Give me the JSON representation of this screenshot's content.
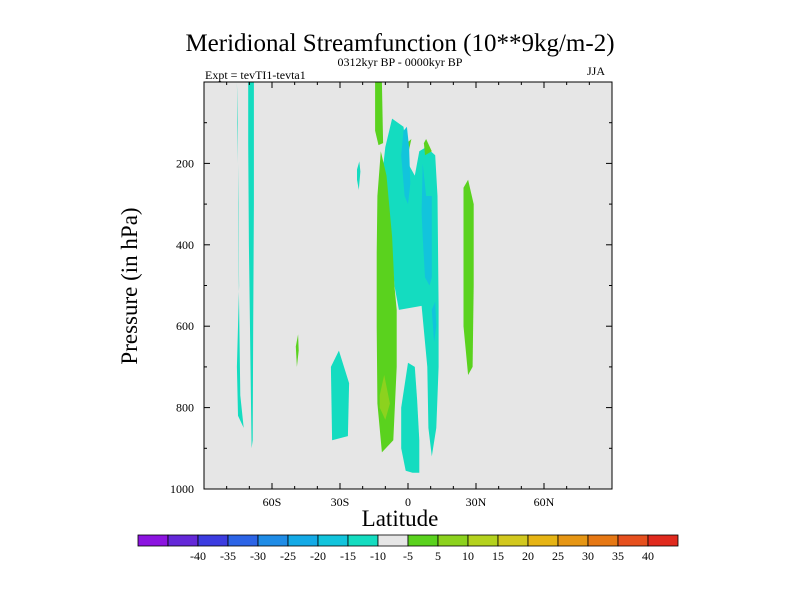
{
  "chart_data": {
    "type": "heatmap",
    "title": "Meridional Streamfunction (10**9kg/m-2)",
    "subtitle": "0312kyr BP - 0000kyr BP",
    "left_label": "Expt = tevTI1-tevta1",
    "right_label": "JJA",
    "xlabel": "Latitude",
    "ylabel": "Pressure (in hPa)",
    "xlim": [
      -90,
      90
    ],
    "ylim": [
      1000,
      0
    ],
    "x_ticks": [
      {
        "value": -60,
        "label": "60S"
      },
      {
        "value": -30,
        "label": "30S"
      },
      {
        "value": 0,
        "label": "0"
      },
      {
        "value": 30,
        "label": "30N"
      },
      {
        "value": 60,
        "label": "60N"
      }
    ],
    "y_ticks": [
      {
        "value": 200,
        "label": "200"
      },
      {
        "value": 400,
        "label": "400"
      },
      {
        "value": 600,
        "label": "600"
      },
      {
        "value": 800,
        "label": "800"
      },
      {
        "value": 1000,
        "label": "1000"
      }
    ],
    "background_color": "#e6e6e6",
    "colorbar": {
      "colors": [
        "#8c14e0",
        "#6428d8",
        "#3c3ce0",
        "#2c64e6",
        "#1f8ce6",
        "#14aae6",
        "#12c4dc",
        "#14dcc0",
        "#e6e6e6",
        "#5ad21e",
        "#8cd21e",
        "#b4d21e",
        "#d2c81e",
        "#e6b414",
        "#e69614",
        "#e67814",
        "#e6501e",
        "#e02a1e"
      ],
      "labels": [
        "-40",
        "-35",
        "-30",
        "-25",
        "-20",
        "-15",
        "-10",
        "-5",
        "5",
        "10",
        "15",
        "20",
        "25",
        "30",
        "35",
        "40"
      ]
    },
    "contour_regions": [
      {
        "value_range": "-10 to -5",
        "color": "#14dcc0",
        "points": [
          [
            -79.5,
            0
          ],
          [
            -75.5,
            0
          ],
          [
            -75,
            200
          ],
          [
            -74.5,
            500
          ],
          [
            -75.5,
            700
          ],
          [
            -75,
            820
          ],
          [
            -72.5,
            850
          ],
          [
            -74,
            770
          ],
          [
            -74.5,
            550
          ],
          [
            -75,
            300
          ],
          [
            -75,
            100
          ],
          [
            -75.5,
            0
          ]
        ]
      },
      {
        "value_range": "-10 to -5",
        "color": "#14dcc0",
        "points": [
          [
            -70.5,
            0
          ],
          [
            -68,
            0
          ],
          [
            -68,
            300
          ],
          [
            -68.3,
            600
          ],
          [
            -68.5,
            880
          ],
          [
            -69,
            900
          ],
          [
            -69.5,
            700
          ],
          [
            -70.2,
            400
          ],
          [
            -70.5,
            150
          ]
        ]
      },
      {
        "value_range": "-10 to -5",
        "color": "#14dcc0",
        "points": [
          [
            -34,
            700
          ],
          [
            -30.5,
            660
          ],
          [
            -26,
            740
          ],
          [
            -26.5,
            870
          ],
          [
            -33.5,
            880
          ]
        ]
      },
      {
        "value_range": "-10 to -5",
        "color": "#14dcc0",
        "points": [
          [
            -22.5,
            215
          ],
          [
            -21.5,
            195
          ],
          [
            -21,
            220
          ],
          [
            -21.7,
            265
          ],
          [
            -22.5,
            240
          ]
        ]
      },
      {
        "value_range": "-10 to -5",
        "color": "#14dcc0",
        "points": [
          [
            -12,
            260
          ],
          [
            -10,
            160
          ],
          [
            -7,
            90
          ],
          [
            -2,
            110
          ],
          [
            0,
            200
          ],
          [
            3,
            230
          ],
          [
            5,
            170
          ],
          [
            8,
            160
          ],
          [
            12,
            180
          ],
          [
            13,
            280
          ],
          [
            13.5,
            550
          ],
          [
            13.5,
            700
          ],
          [
            12.5,
            850
          ],
          [
            10.5,
            920
          ],
          [
            9,
            850
          ],
          [
            8.5,
            700
          ],
          [
            6,
            550
          ],
          [
            -4,
            560
          ],
          [
            -6,
            500
          ],
          [
            -8,
            350
          ]
        ]
      },
      {
        "value_range": "-10 to -5",
        "color": "#14dcc0",
        "points": [
          [
            -3,
            800
          ],
          [
            0,
            690
          ],
          [
            3,
            700
          ],
          [
            4,
            780
          ],
          [
            5,
            880
          ],
          [
            5,
            960
          ],
          [
            2,
            960
          ],
          [
            -1,
            955
          ],
          [
            -3,
            900
          ]
        ]
      },
      {
        "value_range": "5 to 10",
        "color": "#5ad21e",
        "points": [
          [
            -14.5,
            0
          ],
          [
            -11.5,
            0
          ],
          [
            -11,
            150
          ],
          [
            -13,
            155
          ],
          [
            -14.5,
            120
          ]
        ]
      },
      {
        "value_range": "5 to 10",
        "color": "#5ad21e",
        "points": [
          [
            -13.5,
            280
          ],
          [
            -12,
            170
          ],
          [
            -9.5,
            230
          ],
          [
            -7,
            380
          ],
          [
            -6,
            500
          ],
          [
            -5,
            560
          ],
          [
            -5,
            700
          ],
          [
            -6.5,
            880
          ],
          [
            -11.5,
            910
          ],
          [
            -13.5,
            790
          ],
          [
            -13.8,
            600
          ],
          [
            -13.8,
            420
          ]
        ]
      },
      {
        "value_range": "5 to 10",
        "color": "#5ad21e",
        "points": [
          [
            -0.5,
            150
          ],
          [
            1.5,
            140
          ],
          [
            -0.5,
            190
          ],
          [
            -1.5,
            210
          ]
        ]
      },
      {
        "value_range": "5 to 10",
        "color": "#5ad21e",
        "points": [
          [
            7,
            150
          ],
          [
            8,
            140
          ],
          [
            10.5,
            170
          ],
          [
            7.5,
            180
          ]
        ]
      },
      {
        "value_range": "5 to 10",
        "color": "#5ad21e",
        "points": [
          [
            24.5,
            260
          ],
          [
            26.5,
            240
          ],
          [
            29,
            300
          ],
          [
            29,
            500
          ],
          [
            28.5,
            700
          ],
          [
            26.5,
            720
          ],
          [
            24.5,
            600
          ]
        ]
      },
      {
        "value_range": "5 to 10",
        "color": "#5ad21e",
        "points": [
          [
            -49.5,
            650
          ],
          [
            -48.5,
            620
          ],
          [
            -48.2,
            660
          ],
          [
            -49,
            700
          ]
        ]
      },
      {
        "value_range": "10 to 15",
        "color": "#8cd21e",
        "points": [
          [
            -12.5,
            770
          ],
          [
            -10.5,
            720
          ],
          [
            -8,
            790
          ],
          [
            -10,
            830
          ],
          [
            -12.5,
            800
          ]
        ]
      },
      {
        "value_range": "-15 to -10",
        "color": "#12c4dc",
        "points": [
          [
            -3,
            180
          ],
          [
            -2,
            120
          ],
          [
            -0.5,
            110
          ],
          [
            0.5,
            160
          ],
          [
            1,
            250
          ],
          [
            0,
            300
          ],
          [
            -1.5,
            280
          ]
        ]
      },
      {
        "value_range": "-15 to -10",
        "color": "#12c4dc",
        "points": [
          [
            6,
            320
          ],
          [
            6.5,
            200
          ],
          [
            8,
            280
          ],
          [
            10.5,
            280
          ],
          [
            10.5,
            420
          ],
          [
            10.5,
            480
          ],
          [
            9.5,
            500
          ],
          [
            7.5,
            480
          ],
          [
            6.5,
            380
          ]
        ]
      },
      {
        "value_range": "-15 to -10",
        "color": "#12c4dc",
        "points": [
          [
            10.5,
            560
          ],
          [
            12,
            540
          ],
          [
            12.5,
            600
          ],
          [
            11.5,
            640
          ]
        ]
      }
    ]
  }
}
